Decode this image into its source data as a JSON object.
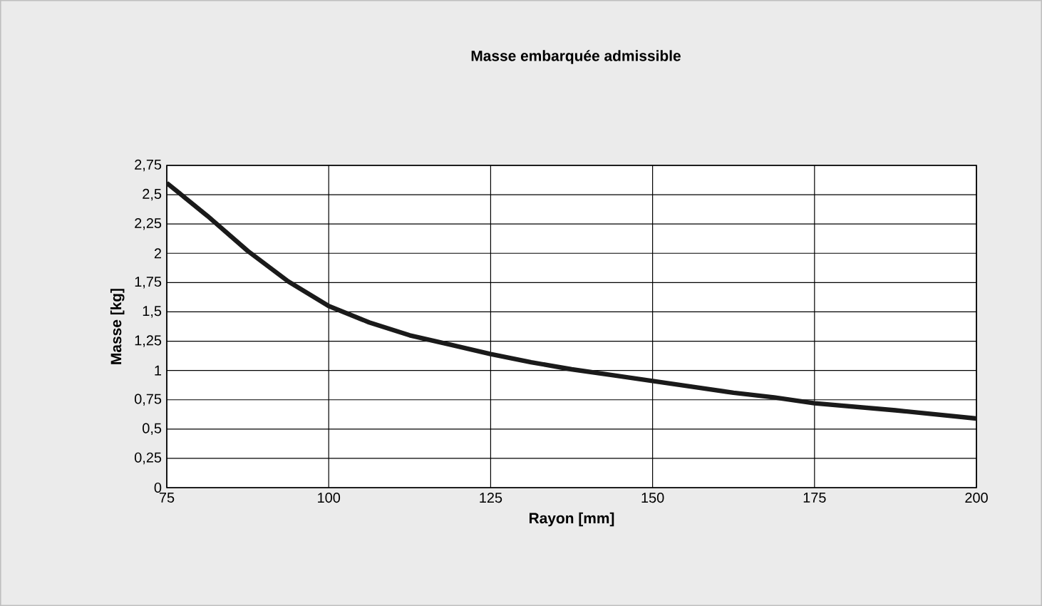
{
  "chart_data": {
    "type": "line",
    "title": "Masse embarquée admissible",
    "xlabel": "Rayon [mm]",
    "ylabel": "Masse [kg]",
    "x": [
      75,
      81.25,
      87.5,
      93.75,
      100,
      106.25,
      112.5,
      118.75,
      125,
      131.25,
      137.5,
      143.75,
      150,
      156.25,
      162.5,
      168.75,
      175,
      187.5,
      200
    ],
    "series": [
      {
        "color": "#1a1a1a",
        "values": [
          2.6,
          2.32,
          2.02,
          1.76,
          1.55,
          1.41,
          1.3,
          1.22,
          1.14,
          1.07,
          1.01,
          0.96,
          0.91,
          0.86,
          0.81,
          0.77,
          0.72,
          0.66,
          0.59
        ]
      }
    ],
    "xlim": [
      75,
      200
    ],
    "ylim": [
      0,
      2.75
    ],
    "xticks": [
      75,
      100,
      125,
      150,
      175,
      200
    ],
    "yticks": [
      0,
      {
        "value": 0.25,
        "label": "0,25"
      },
      {
        "value": 0.5,
        "label": "0,5"
      },
      {
        "value": 0.75,
        "label": "0,75"
      },
      1,
      {
        "value": 1.25,
        "label": "1,25"
      },
      {
        "value": 1.5,
        "label": "1,5"
      },
      {
        "value": 1.75,
        "label": "1,75"
      },
      2,
      {
        "value": 2.25,
        "label": "2,25"
      },
      {
        "value": 2.5,
        "label": "2,5"
      },
      {
        "value": 2.75,
        "label": "2,75"
      }
    ],
    "grid": true,
    "marker": "none",
    "line_style": "solid"
  }
}
